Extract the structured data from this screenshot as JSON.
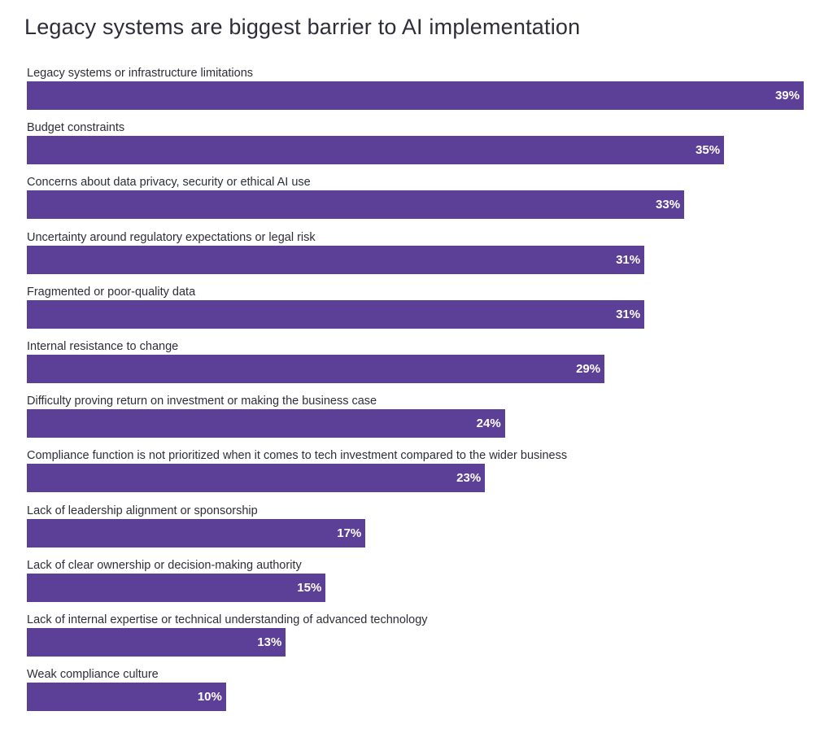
{
  "chart_data": {
    "type": "bar",
    "orientation": "horizontal",
    "title": "Legacy systems are biggest barrier to AI implementation",
    "xlabel": "",
    "ylabel": "",
    "xlim": [
      0,
      39
    ],
    "grid": false,
    "bar_color": "#5c3f97",
    "label_color": "#ffffff",
    "value_suffix": "%",
    "categories": [
      "Legacy systems or infrastructure limitations",
      "Budget constraints",
      "Concerns about data privacy, security or ethical AI use",
      "Uncertainty around regulatory expectations or legal risk",
      "Fragmented or poor-quality data",
      "Internal resistance to change",
      "Difficulty proving return on investment or making the business case",
      "Compliance function is not prioritized when it comes to tech investment compared to the wider business",
      "Lack of leadership alignment or sponsorship",
      "Lack of clear ownership or decision-making authority",
      "Lack of internal expertise or technical understanding of advanced technology",
      "Weak compliance culture"
    ],
    "values": [
      39,
      35,
      33,
      31,
      31,
      29,
      24,
      23,
      17,
      15,
      13,
      10
    ],
    "value_labels": [
      "39%",
      "35%",
      "33%",
      "31%",
      "31%",
      "29%",
      "24%",
      "23%",
      "17%",
      "15%",
      "13%",
      "10%"
    ]
  }
}
